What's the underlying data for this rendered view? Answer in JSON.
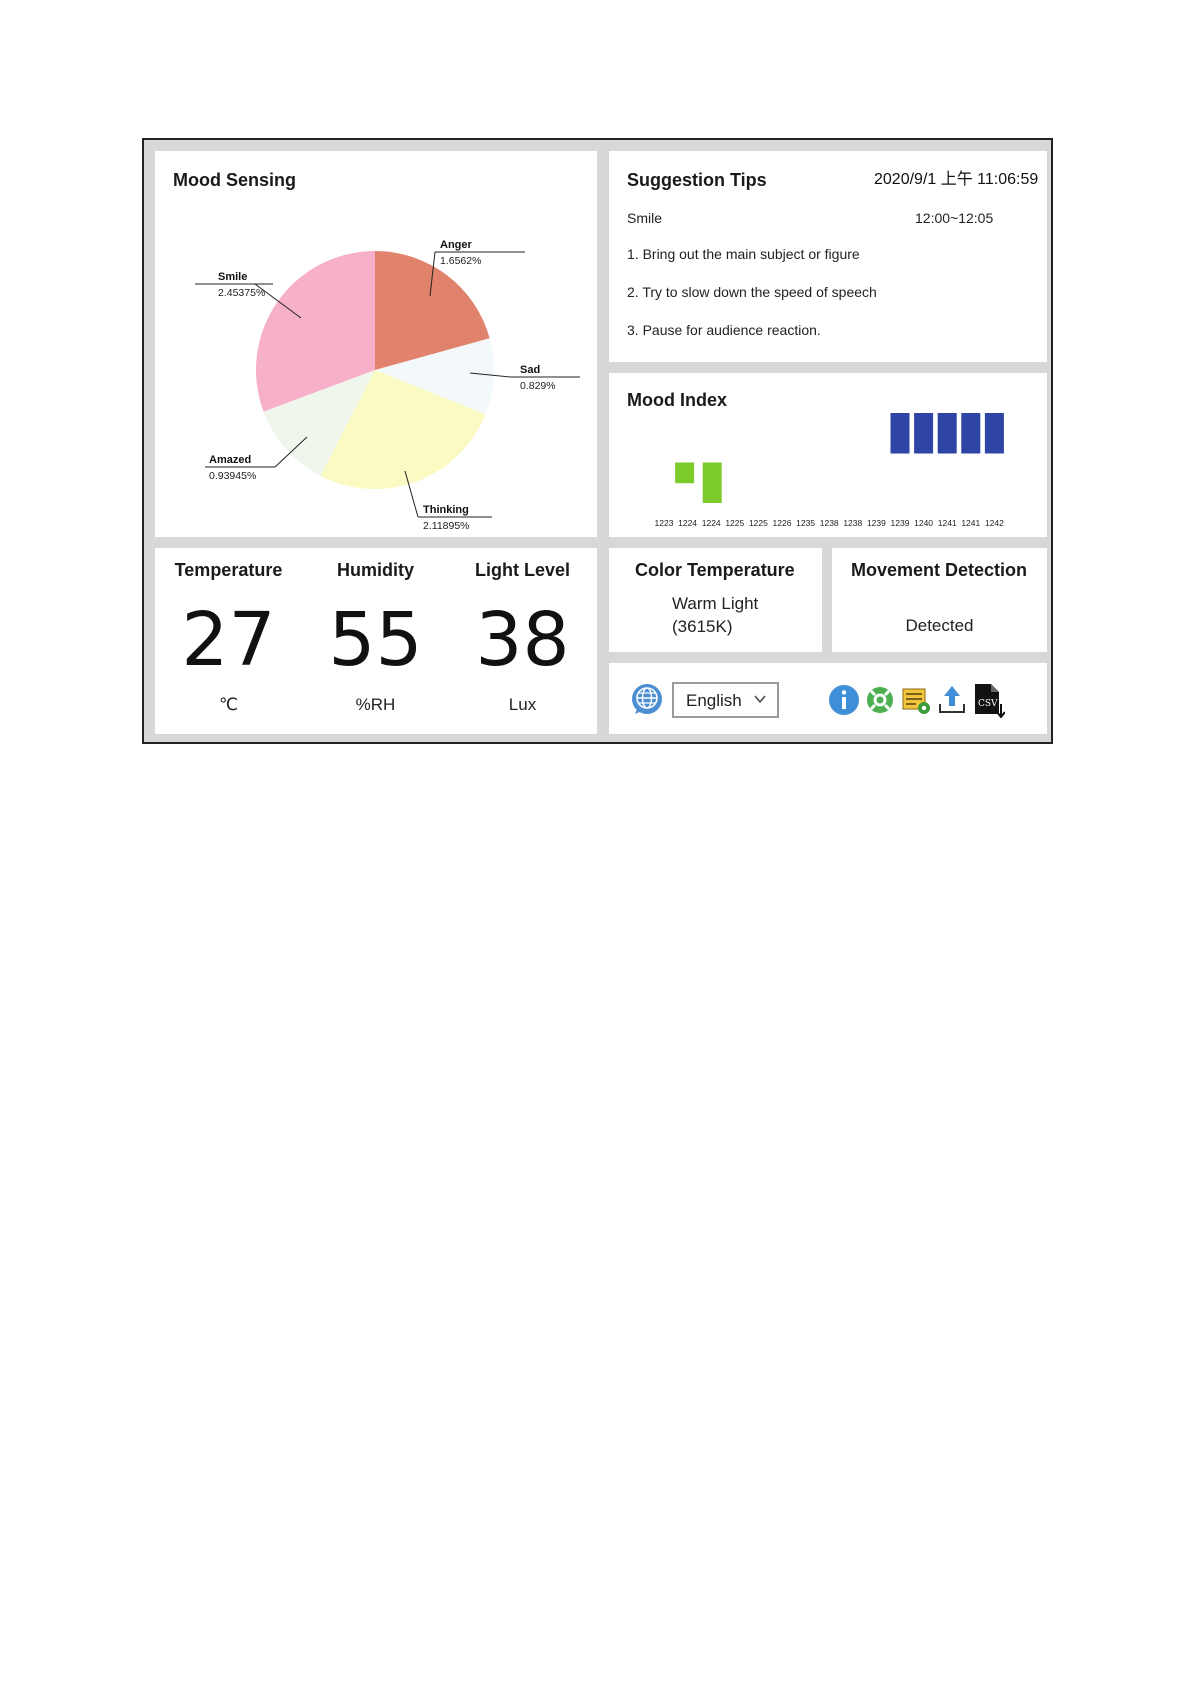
{
  "mood_sensing": {
    "title": "Mood Sensing",
    "slices": [
      {
        "name": "Anger",
        "percent": "1.6562%",
        "value": 1.6562,
        "color": "#e0826c"
      },
      {
        "name": "Sad",
        "percent": "0.829%",
        "value": 0.829,
        "color": "#f3f8fb"
      },
      {
        "name": "Thinking",
        "percent": "2.11895%",
        "value": 2.11895,
        "color": "#fafac2"
      },
      {
        "name": "Amazed",
        "percent": "0.93945%",
        "value": 0.93945,
        "color": "#eff6ec"
      },
      {
        "name": "Smile",
        "percent": "2.45375%",
        "value": 2.45375,
        "color": "#f7b0c9"
      }
    ]
  },
  "suggestion_tips": {
    "title": "Suggestion Tips",
    "datetime": "2020/9/1 上午 11:06:59",
    "mood": "Smile",
    "time_range": "12:00~12:05",
    "tips": [
      "1. Bring out the main subject or figure",
      "2. Try to slow down the speed of speech",
      "3. Pause for audience reaction."
    ]
  },
  "mood_index": {
    "title": "Mood Index",
    "colors": {
      "positive": "#7ccb2b",
      "negative": "#2f45a6"
    },
    "ticks": [
      "1223",
      "1224",
      "1224",
      "1225",
      "1225",
      "1226",
      "1235",
      "1238",
      "1238",
      "1239",
      "1239",
      "1240",
      "1241",
      "1241",
      "1242"
    ],
    "bars": [
      {
        "tick_index": 1,
        "kind": "positive",
        "from": 0.55,
        "to": 0.78
      },
      {
        "tick_index": 2,
        "kind": "positive",
        "from": 0.55,
        "to": 1.0
      },
      {
        "tick_index": 10,
        "kind": "negative",
        "from": 0.0,
        "to": 0.45
      },
      {
        "tick_index": 11,
        "kind": "negative",
        "from": 0.0,
        "to": 0.45
      },
      {
        "tick_index": 12,
        "kind": "negative",
        "from": 0.0,
        "to": 0.45
      },
      {
        "tick_index": 13,
        "kind": "negative",
        "from": 0.0,
        "to": 0.45
      },
      {
        "tick_index": 14,
        "kind": "negative",
        "from": 0.0,
        "to": 0.45
      }
    ]
  },
  "environment": {
    "temperature": {
      "label": "Temperature",
      "value": "27",
      "unit": "℃"
    },
    "humidity": {
      "label": "Humidity",
      "value": "55",
      "unit": "%RH"
    },
    "light": {
      "label": "Light Level",
      "value": "38",
      "unit": "Lux"
    }
  },
  "color_temperature": {
    "title": "Color Temperature",
    "line1": "Warm Light",
    "line2": "(3615K)"
  },
  "movement": {
    "title": "Movement Detection",
    "status": "Detected"
  },
  "toolbar": {
    "language": "English",
    "icons": [
      "globe-icon",
      "info-icon",
      "support-icon",
      "settings-icon",
      "upload-icon",
      "csv-download-icon"
    ],
    "csv_label": "CSV"
  }
}
